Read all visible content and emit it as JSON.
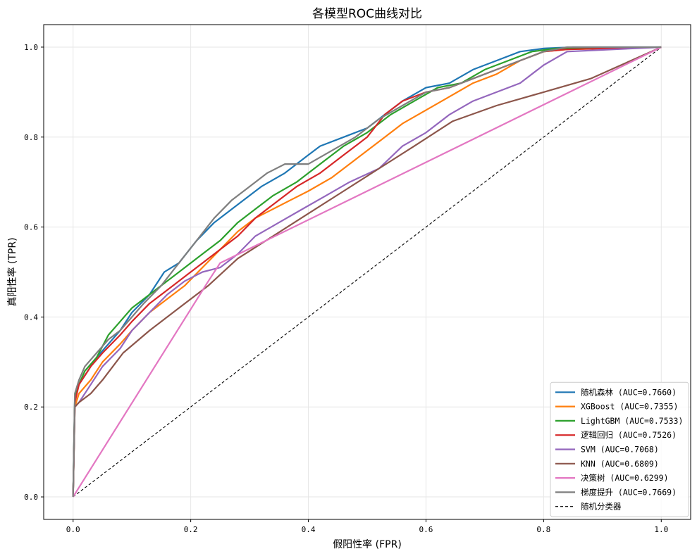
{
  "chart_data": {
    "type": "line",
    "title": "各模型ROC曲线对比",
    "xlabel": "假阳性率 (FPR)",
    "ylabel": "真阳性率 (TPR)",
    "xlim": [
      -0.05,
      1.05
    ],
    "ylim": [
      -0.05,
      1.05
    ],
    "xticks": [
      0.0,
      0.2,
      0.4,
      0.6,
      0.8,
      1.0
    ],
    "yticks": [
      0.0,
      0.2,
      0.4,
      0.6,
      0.8,
      1.0
    ],
    "xtick_labels": [
      "0.0",
      "0.2",
      "0.4",
      "0.6",
      "0.8",
      "1.0"
    ],
    "ytick_labels": [
      "0.0",
      "0.2",
      "0.4",
      "0.6",
      "0.8",
      "1.0"
    ],
    "grid": true,
    "legend_position": "lower-right",
    "series": [
      {
        "name": "随机森林 (AUC=0.7660)",
        "color": "#1f77b4",
        "dashed": false,
        "x": [
          0,
          0.003,
          0.01,
          0.02,
          0.04,
          0.06,
          0.08,
          0.1,
          0.13,
          0.155,
          0.18,
          0.21,
          0.24,
          0.28,
          0.32,
          0.36,
          0.4,
          0.42,
          0.46,
          0.5,
          0.53,
          0.56,
          0.6,
          0.64,
          0.68,
          0.72,
          0.76,
          0.8,
          0.85,
          1.0
        ],
        "y": [
          0,
          0.22,
          0.25,
          0.27,
          0.31,
          0.34,
          0.37,
          0.41,
          0.45,
          0.5,
          0.52,
          0.57,
          0.61,
          0.65,
          0.69,
          0.72,
          0.76,
          0.78,
          0.8,
          0.82,
          0.85,
          0.88,
          0.91,
          0.92,
          0.95,
          0.97,
          0.99,
          0.997,
          1.0,
          1.0
        ]
      },
      {
        "name": "XGBoost (AUC=0.7355)",
        "color": "#ff7f0e",
        "dashed": false,
        "x": [
          0,
          0.003,
          0.01,
          0.03,
          0.05,
          0.08,
          0.1,
          0.13,
          0.16,
          0.19,
          0.22,
          0.25,
          0.28,
          0.31,
          0.34,
          0.37,
          0.4,
          0.44,
          0.48,
          0.52,
          0.56,
          0.6,
          0.64,
          0.68,
          0.72,
          0.76,
          0.8,
          0.84,
          1.0
        ],
        "y": [
          0,
          0.2,
          0.23,
          0.26,
          0.3,
          0.34,
          0.37,
          0.41,
          0.44,
          0.47,
          0.51,
          0.55,
          0.59,
          0.62,
          0.64,
          0.66,
          0.68,
          0.71,
          0.75,
          0.79,
          0.83,
          0.86,
          0.89,
          0.92,
          0.94,
          0.97,
          0.99,
          0.995,
          1.0
        ]
      },
      {
        "name": "LightGBM (AUC=0.7533)",
        "color": "#2ca02c",
        "dashed": false,
        "x": [
          0,
          0.003,
          0.01,
          0.02,
          0.04,
          0.06,
          0.08,
          0.1,
          0.13,
          0.16,
          0.19,
          0.22,
          0.25,
          0.28,
          0.31,
          0.34,
          0.38,
          0.42,
          0.46,
          0.5,
          0.54,
          0.58,
          0.62,
          0.66,
          0.7,
          0.74,
          0.78,
          0.82,
          1.0
        ],
        "y": [
          0,
          0.22,
          0.25,
          0.28,
          0.31,
          0.36,
          0.39,
          0.42,
          0.45,
          0.48,
          0.51,
          0.54,
          0.57,
          0.61,
          0.64,
          0.67,
          0.7,
          0.74,
          0.78,
          0.81,
          0.85,
          0.88,
          0.91,
          0.92,
          0.95,
          0.97,
          0.99,
          0.997,
          1.0
        ]
      },
      {
        "name": "逻辑回归 (AUC=0.7526)",
        "color": "#d62728",
        "dashed": false,
        "x": [
          0,
          0.003,
          0.01,
          0.03,
          0.05,
          0.08,
          0.1,
          0.13,
          0.16,
          0.19,
          0.22,
          0.25,
          0.28,
          0.31,
          0.34,
          0.38,
          0.42,
          0.46,
          0.5,
          0.53,
          0.56,
          0.6,
          0.64,
          0.68,
          0.72,
          0.76,
          0.8,
          0.84,
          1.0
        ],
        "y": [
          0,
          0.21,
          0.25,
          0.29,
          0.32,
          0.36,
          0.39,
          0.43,
          0.46,
          0.49,
          0.52,
          0.55,
          0.58,
          0.62,
          0.65,
          0.69,
          0.72,
          0.76,
          0.8,
          0.85,
          0.88,
          0.9,
          0.91,
          0.93,
          0.95,
          0.97,
          0.99,
          0.995,
          1.0
        ]
      },
      {
        "name": "SVM (AUC=0.7068)",
        "color": "#9467bd",
        "dashed": false,
        "x": [
          0,
          0.003,
          0.01,
          0.03,
          0.05,
          0.08,
          0.1,
          0.13,
          0.16,
          0.19,
          0.22,
          0.25,
          0.28,
          0.31,
          0.35,
          0.39,
          0.43,
          0.47,
          0.52,
          0.56,
          0.6,
          0.64,
          0.68,
          0.72,
          0.76,
          0.8,
          0.84,
          1.0
        ],
        "y": [
          0,
          0.2,
          0.21,
          0.25,
          0.29,
          0.33,
          0.37,
          0.41,
          0.45,
          0.48,
          0.5,
          0.51,
          0.54,
          0.58,
          0.61,
          0.64,
          0.67,
          0.7,
          0.73,
          0.78,
          0.81,
          0.85,
          0.88,
          0.9,
          0.92,
          0.96,
          0.99,
          1.0
        ]
      },
      {
        "name": "KNN (AUC=0.6809)",
        "color": "#8c564b",
        "dashed": false,
        "x": [
          0,
          0.003,
          0.01,
          0.03,
          0.05,
          0.085,
          0.13,
          0.18,
          0.23,
          0.28,
          0.34,
          0.4,
          0.46,
          0.52,
          0.58,
          0.645,
          0.72,
          0.8,
          0.88,
          1.0
        ],
        "y": [
          0,
          0.2,
          0.21,
          0.23,
          0.26,
          0.32,
          0.37,
          0.42,
          0.47,
          0.53,
          0.58,
          0.63,
          0.68,
          0.73,
          0.78,
          0.835,
          0.87,
          0.9,
          0.93,
          1.0
        ]
      },
      {
        "name": "决策树 (AUC=0.6299)",
        "color": "#e377c2",
        "dashed": false,
        "x": [
          0,
          0.23,
          0.25,
          1.0
        ],
        "y": [
          0,
          0.48,
          0.52,
          1.0
        ]
      },
      {
        "name": "梯度提升 (AUC=0.7669)",
        "color": "#7f7f7f",
        "dashed": false,
        "x": [
          0,
          0.003,
          0.01,
          0.02,
          0.04,
          0.06,
          0.08,
          0.1,
          0.12,
          0.15,
          0.18,
          0.21,
          0.24,
          0.27,
          0.3,
          0.33,
          0.36,
          0.4,
          0.44,
          0.48,
          0.52,
          0.56,
          0.6,
          0.64,
          0.68,
          0.72,
          0.76,
          0.8,
          0.84,
          1.0
        ],
        "y": [
          0,
          0.23,
          0.26,
          0.29,
          0.32,
          0.35,
          0.37,
          0.4,
          0.43,
          0.47,
          0.52,
          0.57,
          0.62,
          0.66,
          0.69,
          0.72,
          0.74,
          0.74,
          0.77,
          0.8,
          0.84,
          0.87,
          0.9,
          0.91,
          0.93,
          0.95,
          0.97,
          0.99,
          1.0,
          1.0
        ]
      },
      {
        "name": "随机分类器",
        "color": "#000000",
        "dashed": true,
        "x": [
          0,
          1.0
        ],
        "y": [
          0,
          1.0
        ]
      }
    ]
  }
}
